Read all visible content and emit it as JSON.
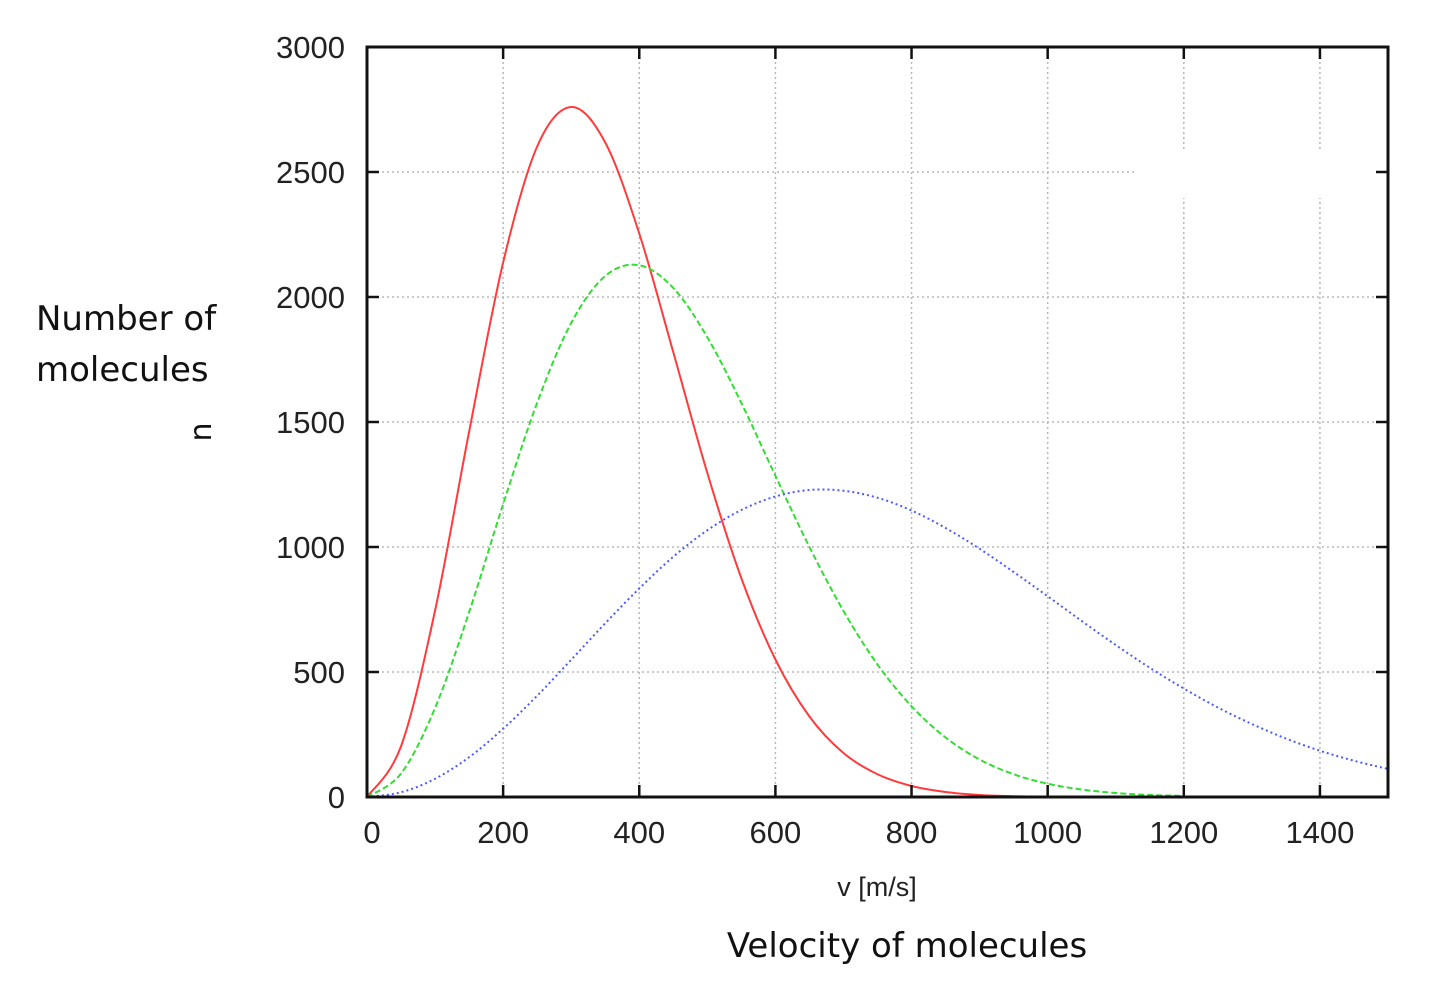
{
  "chart_data": {
    "type": "line",
    "title": "",
    "xlabel": "v [m/s]",
    "xlabel_secondary": "Velocity of molecules",
    "ylabel_lines": [
      "Number of",
      "molecules"
    ],
    "ylabel_symbol": "n",
    "xlim": [
      0,
      1500
    ],
    "ylim": [
      0,
      3000
    ],
    "xticks": [
      0,
      200,
      400,
      600,
      800,
      1000,
      1200,
      1400
    ],
    "yticks": [
      0,
      500,
      1000,
      1500,
      2000,
      2500,
      3000
    ],
    "grid": true,
    "legend": "none",
    "series": [
      {
        "color": "#ff3b3b",
        "dash": "solid",
        "x": [
          0,
          50,
          100,
          150,
          200,
          250,
          300,
          350,
          400,
          450,
          500,
          550,
          600,
          650,
          700,
          750,
          800,
          850,
          900,
          950,
          1000,
          1050,
          1100,
          1150,
          1200
        ],
        "y": [
          0,
          203,
          746,
          1461,
          2138,
          2602,
          2760,
          2618,
          2254,
          1779,
          1296,
          875,
          550,
          322,
          176,
          91,
          44,
          20,
          8,
          3,
          1,
          0,
          0,
          0,
          0
        ]
      },
      {
        "color": "#33dd33",
        "dash": "dashed",
        "x": [
          0,
          50,
          100,
          150,
          200,
          250,
          300,
          350,
          400,
          450,
          500,
          550,
          600,
          650,
          700,
          750,
          800,
          850,
          900,
          950,
          1000,
          1050,
          1100,
          1150,
          1200
        ],
        "y": [
          0,
          94,
          356,
          739,
          1171,
          1577,
          1896,
          2084,
          2127,
          2036,
          1839,
          1576,
          1285,
          1000,
          744,
          530,
          363,
          238,
          150,
          91,
          53,
          30,
          16,
          8,
          4
        ]
      },
      {
        "color": "#4a5cff",
        "dash": "dotted",
        "x": [
          0,
          50,
          100,
          150,
          200,
          250,
          300,
          350,
          400,
          450,
          500,
          550,
          600,
          650,
          700,
          750,
          800,
          850,
          900,
          950,
          1000,
          1050,
          1100,
          1150,
          1200,
          1250,
          1300,
          1350,
          1400,
          1450,
          1500
        ],
        "y": [
          0,
          19,
          73,
          159,
          273,
          405,
          549,
          695,
          834,
          961,
          1067,
          1148,
          1202,
          1228,
          1225,
          1197,
          1146,
          1076,
          993,
          900,
          803,
          704,
          608,
          517,
          434,
          358,
          292,
          234,
          185,
          145,
          112
        ]
      }
    ]
  }
}
